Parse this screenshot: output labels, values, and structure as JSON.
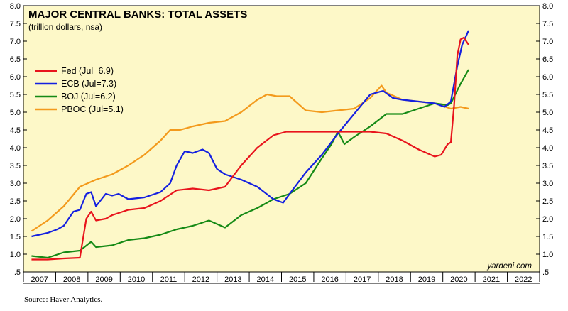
{
  "source": "Source: Haver Analytics.",
  "watermark": "yardeni.com",
  "colors": {
    "plot_background": "#fdf8c8",
    "Fed": "#e8141c",
    "ECB": "#1420e0",
    "BOJ": "#158a15",
    "PBOC": "#f39a1c"
  },
  "chart_data": {
    "type": "line",
    "title": "MAJOR CENTRAL BANKS: TOTAL ASSETS",
    "subtitle": "(trillion dollars, nsa)",
    "xlabel": "",
    "ylabel": "",
    "xlim": [
      2006.75,
      2022.75
    ],
    "ylim": [
      0.5,
      8.0
    ],
    "y_ticks": [
      ".5",
      "1.0",
      "1.5",
      "2.0",
      "2.5",
      "3.0",
      "3.5",
      "4.0",
      "4.5",
      "5.0",
      "5.5",
      "6.0",
      "6.5",
      "7.0",
      "7.5",
      "8.0"
    ],
    "x_ticks": [
      "2007",
      "2008",
      "2009",
      "2010",
      "2011",
      "2012",
      "2013",
      "2014",
      "2015",
      "2016",
      "2017",
      "2018",
      "2019",
      "2020",
      "2021",
      "2022"
    ],
    "y_axis_both_sides": true,
    "grid": false,
    "legend_position": "upper-left",
    "series": [
      {
        "name": "Fed (Jul=6.9)",
        "color": "#e8141c",
        "x": [
          2007.0,
          2007.5,
          2008.0,
          2008.5,
          2008.7,
          2008.85,
          2009.0,
          2009.3,
          2009.5,
          2010.0,
          2010.5,
          2011.0,
          2011.5,
          2012.0,
          2012.5,
          2013.0,
          2013.5,
          2014.0,
          2014.5,
          2014.9,
          2015.5,
          2016.0,
          2016.5,
          2017.0,
          2017.5,
          2018.0,
          2018.5,
          2019.0,
          2019.5,
          2019.7,
          2019.9,
          2020.0,
          2020.1,
          2020.2,
          2020.3,
          2020.4,
          2020.55
        ],
        "y": [
          0.85,
          0.85,
          0.88,
          0.9,
          2.0,
          2.2,
          1.95,
          2.0,
          2.1,
          2.25,
          2.3,
          2.5,
          2.8,
          2.85,
          2.8,
          2.9,
          3.5,
          4.0,
          4.35,
          4.45,
          4.45,
          4.45,
          4.45,
          4.45,
          4.45,
          4.4,
          4.2,
          3.95,
          3.75,
          3.8,
          4.1,
          4.15,
          5.2,
          6.6,
          7.05,
          7.1,
          6.9
        ]
      },
      {
        "name": "ECB (Jul=7.3)",
        "color": "#1420e0",
        "x": [
          2007.0,
          2007.5,
          2007.8,
          2008.0,
          2008.3,
          2008.5,
          2008.7,
          2008.85,
          2009.0,
          2009.3,
          2009.5,
          2009.7,
          2010.0,
          2010.5,
          2011.0,
          2011.3,
          2011.5,
          2011.75,
          2012.0,
          2012.3,
          2012.5,
          2012.75,
          2013.0,
          2013.5,
          2014.0,
          2014.5,
          2014.8,
          2015.0,
          2015.5,
          2016.0,
          2016.5,
          2017.0,
          2017.5,
          2017.9,
          2018.2,
          2018.5,
          2019.0,
          2019.5,
          2019.8,
          2020.0,
          2020.2,
          2020.35,
          2020.55
        ],
        "y": [
          1.5,
          1.6,
          1.7,
          1.8,
          2.2,
          2.25,
          2.7,
          2.75,
          2.35,
          2.7,
          2.65,
          2.7,
          2.55,
          2.6,
          2.75,
          3.0,
          3.5,
          3.9,
          3.85,
          3.95,
          3.85,
          3.4,
          3.25,
          3.1,
          2.9,
          2.55,
          2.45,
          2.7,
          3.3,
          3.8,
          4.4,
          4.95,
          5.5,
          5.6,
          5.4,
          5.35,
          5.3,
          5.25,
          5.15,
          5.3,
          6.3,
          6.9,
          7.3
        ]
      },
      {
        "name": "BOJ (Jul=6.2)",
        "color": "#158a15",
        "x": [
          2007.0,
          2007.5,
          2008.0,
          2008.5,
          2008.85,
          2009.0,
          2009.5,
          2010.0,
          2010.5,
          2011.0,
          2011.5,
          2012.0,
          2012.5,
          2013.0,
          2013.5,
          2014.0,
          2014.5,
          2015.0,
          2015.5,
          2016.0,
          2016.3,
          2016.5,
          2016.7,
          2017.0,
          2017.5,
          2018.0,
          2018.5,
          2019.0,
          2019.5,
          2019.9,
          2020.0,
          2020.3,
          2020.55
        ],
        "y": [
          0.95,
          0.9,
          1.05,
          1.1,
          1.35,
          1.2,
          1.25,
          1.4,
          1.45,
          1.55,
          1.7,
          1.8,
          1.95,
          1.75,
          2.1,
          2.3,
          2.55,
          2.7,
          3.0,
          3.7,
          4.1,
          4.45,
          4.1,
          4.3,
          4.6,
          4.95,
          4.95,
          5.1,
          5.25,
          5.2,
          5.25,
          5.8,
          6.2
        ]
      },
      {
        "name": "PBOC (Jul=5.1)",
        "color": "#f39a1c",
        "x": [
          2007.0,
          2007.5,
          2008.0,
          2008.5,
          2009.0,
          2009.5,
          2010.0,
          2010.5,
          2011.0,
          2011.3,
          2011.6,
          2012.0,
          2012.5,
          2013.0,
          2013.5,
          2014.0,
          2014.3,
          2014.6,
          2015.0,
          2015.5,
          2016.0,
          2016.5,
          2017.0,
          2017.5,
          2017.85,
          2018.0,
          2018.5,
          2019.0,
          2019.5,
          2020.0,
          2020.3,
          2020.55
        ],
        "y": [
          1.65,
          1.95,
          2.35,
          2.9,
          3.1,
          3.25,
          3.5,
          3.8,
          4.2,
          4.5,
          4.5,
          4.6,
          4.7,
          4.75,
          5.0,
          5.35,
          5.5,
          5.45,
          5.45,
          5.05,
          5.0,
          5.05,
          5.1,
          5.4,
          5.75,
          5.55,
          5.35,
          5.3,
          5.25,
          5.1,
          5.15,
          5.1
        ]
      }
    ]
  }
}
